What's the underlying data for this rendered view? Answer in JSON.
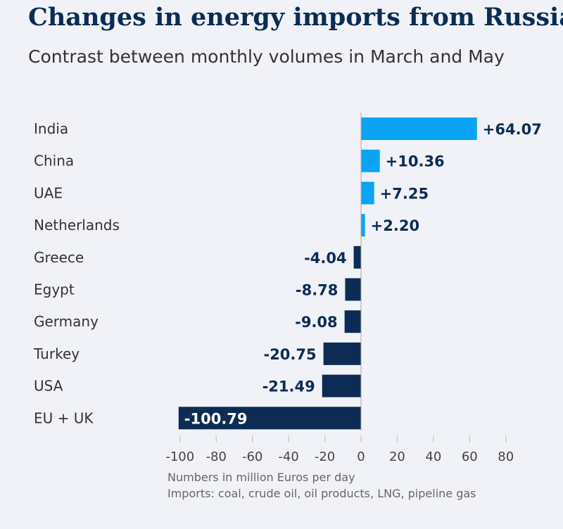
{
  "chart_data": {
    "type": "bar",
    "orientation": "horizontal",
    "title": "Changes in energy imports from Russia",
    "subtitle": "Contrast between monthly volumes in March and May",
    "categories": [
      "India",
      "China",
      "UAE",
      "Netherlands",
      "Greece",
      "Egypt",
      "Germany",
      "Turkey",
      "USA",
      "EU + UK"
    ],
    "values": [
      64.07,
      10.36,
      7.25,
      2.2,
      -4.04,
      -8.78,
      -9.08,
      -20.75,
      -21.49,
      -100.79
    ],
    "labels": [
      "+64.07",
      "+10.36",
      "+7.25",
      "+2.20",
      "-4.04",
      "-8.78",
      "-9.08",
      "-20.75",
      "-21.49",
      "-100.79"
    ],
    "xlim": [
      -100,
      80
    ],
    "xticks": [
      -100,
      -80,
      -60,
      -40,
      -20,
      0,
      20,
      40,
      60,
      80
    ],
    "grid": false,
    "notes": [
      "Numbers in million Euros per day",
      "Imports: coal, crude oil, oil products, LNG, pipeline gas"
    ],
    "colors": {
      "positive": "#0ba4f4",
      "negative": "#0c2c54"
    }
  }
}
